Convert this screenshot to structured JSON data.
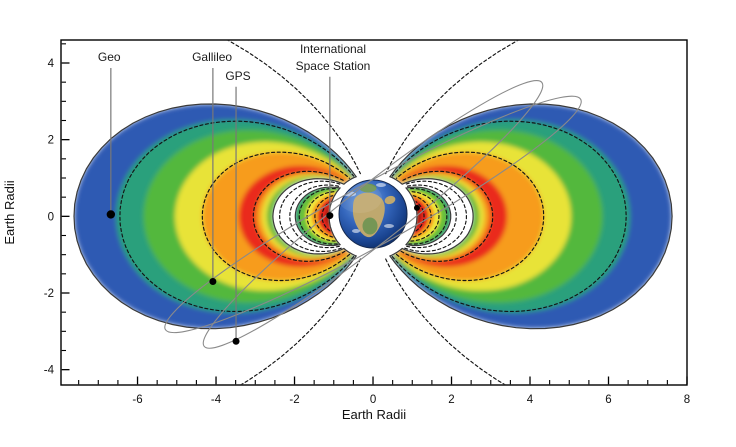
{
  "figure": {
    "background": "#ffffff"
  },
  "chart_data": {
    "type": "diagram",
    "description": "Cross-section of Earth's radiation belts with satellite orbits",
    "axes": {
      "x": {
        "label": "Earth Radii",
        "range": [
          -7.95,
          8.0
        ],
        "major_ticks": [
          -6,
          -4,
          -2,
          0,
          2,
          4,
          6,
          8
        ],
        "tick_labels": [
          "-6",
          "-4",
          "-2",
          "0",
          "2",
          "4",
          "6",
          "8"
        ],
        "minor_step": 0.5
      },
      "y": {
        "label": "Earth Radii",
        "range": [
          -4.4,
          4.6
        ],
        "major_ticks": [
          4,
          2,
          0,
          -2,
          -4
        ],
        "tick_labels": [
          "4",
          "2",
          "0",
          "-2",
          "-4"
        ],
        "minor_step": 0.5
      }
    },
    "belts": {
      "outer": {
        "r_truncate": 1.12,
        "blur": 2.4,
        "inner_L": 2.55,
        "outline": "#3a3a3a",
        "bands": [
          {
            "L": 7.62,
            "color": "#2e5ab3"
          },
          {
            "L": 6.55,
            "color": "#2aa07c"
          },
          {
            "L": 5.85,
            "color": "#52b83c"
          },
          {
            "L": 5.05,
            "color": "#e8e337"
          },
          {
            "L": 4.35,
            "color": "#f79c1c"
          },
          {
            "L": 3.42,
            "color": "#ea2b1f"
          },
          {
            "L": 2.98,
            "color": "#f79c1c"
          },
          {
            "L": 2.84,
            "color": "#e8e337"
          },
          {
            "L": 2.7,
            "color": "#57b33e"
          }
        ]
      },
      "inner": {
        "r_truncate": 1.12,
        "blur": 1.4,
        "inner_L": 1.12,
        "outline": "#3a3a3a",
        "bands": [
          {
            "L": 1.98,
            "color": "#2f9e68"
          },
          {
            "L": 1.88,
            "color": "#6cc13a"
          },
          {
            "L": 1.72,
            "color": "#efe53a"
          },
          {
            "L": 1.56,
            "color": "#f79c1c"
          },
          {
            "L": 1.4,
            "color": "#e3261c"
          },
          {
            "L": 1.22,
            "color": "#a8150a"
          }
        ]
      }
    },
    "field_lines": {
      "style": "dashed",
      "color": "#141414",
      "L_values": [
        1.3,
        1.48,
        1.68,
        1.88,
        2.12,
        2.38,
        3.05,
        4.35,
        6.45,
        15
      ]
    },
    "orbits": [
      {
        "name": "gps-orbit",
        "a_re": 5.46,
        "b_re": 0.74,
        "rotate_deg": -38,
        "color": "#8a8a8a"
      },
      {
        "name": "galileo-orbit",
        "a_re": 6.05,
        "b_re": 0.8,
        "rotate_deg": -29,
        "color": "#8a8a8a"
      }
    ],
    "earth": {
      "center_y_re": 0.06,
      "radius_px": 34,
      "ocean_light": "#7aa8e0",
      "ocean_mid": "#3567bd",
      "ocean_deep": "#1a4490",
      "ocean_rim": "#0c2a60",
      "land_tan": "#bfa86e",
      "land_green": "#6d9352",
      "cloud": "#ffffff"
    },
    "leader_color": "#787878",
    "dot_color": "#000000",
    "annotations": [
      {
        "id": "geo",
        "label": "Geo",
        "label_x": -6.72,
        "label_y": 4.05,
        "line_x": -6.68,
        "line_top_y": 3.87,
        "dot_x": -6.68,
        "dot_y": 0.05,
        "dot_r": 4.2
      },
      {
        "id": "galileo",
        "label": "Gallileo",
        "label_x": -4.1,
        "label_y": 4.05,
        "line_x": -4.08,
        "line_top_y": 3.87,
        "dot_x": -4.08,
        "dot_y": -1.7,
        "dot_r": 3.5
      },
      {
        "id": "gps",
        "label": "GPS",
        "label_x": -3.44,
        "label_y": 3.56,
        "line_x": -3.49,
        "line_top_y": 3.38,
        "dot_x": -3.49,
        "dot_y": -3.26,
        "dot_r": 3.5
      },
      {
        "id": "iss",
        "label": "International Space Station",
        "line1": "International",
        "line2": "Space Station",
        "label_x": -1.02,
        "label_y": 4.26,
        "line_x": -1.1,
        "line_top_y": 3.64,
        "dot_x": -1.1,
        "dot_y": 0.02,
        "dot_r": 3.5,
        "dot2_x": 1.12,
        "dot2_y": 0.22,
        "dot2_r": 3.0
      }
    ]
  }
}
